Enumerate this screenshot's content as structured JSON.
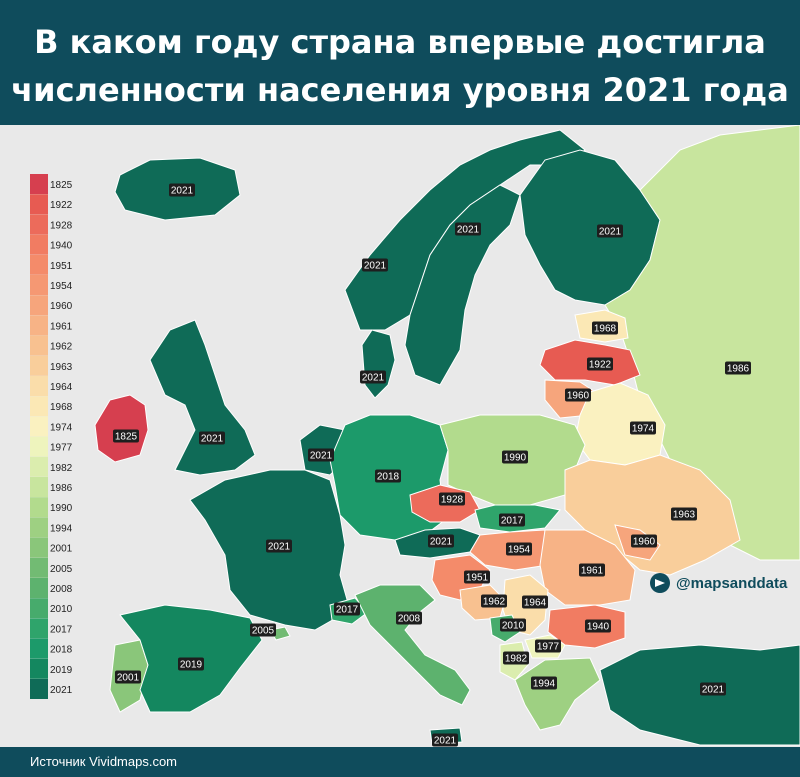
{
  "title": {
    "line1": "В каком году страна впервые достигла",
    "line2": "численности населения уровня 2021 года"
  },
  "source": "Источник Vividmaps.com",
  "telegram_handle": "@mapsanddata",
  "colors": {
    "header_bg": "#0f4c5c",
    "sea": "#e9e9e9"
  },
  "icons": [
    "telegram-icon"
  ],
  "legend": [
    {
      "label": "1825",
      "color": "#d63f4f"
    },
    {
      "label": "1922",
      "color": "#e75b52"
    },
    {
      "label": "1928",
      "color": "#ec6b5b"
    },
    {
      "label": "1940",
      "color": "#f17c62"
    },
    {
      "label": "1951",
      "color": "#f48b6a"
    },
    {
      "label": "1954",
      "color": "#f59873"
    },
    {
      "label": "1960",
      "color": "#f6a57c"
    },
    {
      "label": "1961",
      "color": "#f7b386"
    },
    {
      "label": "1962",
      "color": "#f8c190"
    },
    {
      "label": "1963",
      "color": "#f9ce9b"
    },
    {
      "label": "1964",
      "color": "#faddaa"
    },
    {
      "label": "1968",
      "color": "#fbe8b5"
    },
    {
      "label": "1974",
      "color": "#faf1c0"
    },
    {
      "label": "1977",
      "color": "#eef4bd"
    },
    {
      "label": "1982",
      "color": "#dbedae"
    },
    {
      "label": "1986",
      "color": "#c8e59e"
    },
    {
      "label": "1990",
      "color": "#b2db8d"
    },
    {
      "label": "1994",
      "color": "#9ed082"
    },
    {
      "label": "2001",
      "color": "#8ac67a"
    },
    {
      "label": "2005",
      "color": "#72bb73"
    },
    {
      "label": "2008",
      "color": "#5db26e"
    },
    {
      "label": "2010",
      "color": "#47ab6c"
    },
    {
      "label": "2017",
      "color": "#2fa46b"
    },
    {
      "label": "2018",
      "color": "#1c9a6a"
    },
    {
      "label": "2019",
      "color": "#14875f"
    },
    {
      "label": "2021",
      "color": "#0f6b57"
    }
  ],
  "countries": [
    {
      "name": "iceland",
      "year": "2021"
    },
    {
      "name": "norway",
      "year": "2021"
    },
    {
      "name": "sweden",
      "year": "2021"
    },
    {
      "name": "finland",
      "year": "2021"
    },
    {
      "name": "russia",
      "year": "1986"
    },
    {
      "name": "estonia",
      "year": "1968"
    },
    {
      "name": "latvia",
      "year": "1922"
    },
    {
      "name": "lithuania",
      "year": "1960"
    },
    {
      "name": "belarus",
      "year": "1974"
    },
    {
      "name": "denmark",
      "year": "2021"
    },
    {
      "name": "ireland",
      "year": "1825"
    },
    {
      "name": "uk",
      "year": "2021"
    },
    {
      "name": "netherlands",
      "year": "2021"
    },
    {
      "name": "germany",
      "year": "2018"
    },
    {
      "name": "poland",
      "year": "1990"
    },
    {
      "name": "ukraine",
      "year": "1963"
    },
    {
      "name": "czechia",
      "year": "1928"
    },
    {
      "name": "slovakia",
      "year": "2017"
    },
    {
      "name": "france",
      "year": "2021"
    },
    {
      "name": "austria",
      "year": "2021"
    },
    {
      "name": "hungary",
      "year": "1954"
    },
    {
      "name": "moldova",
      "year": "1960"
    },
    {
      "name": "romania",
      "year": "1961"
    },
    {
      "name": "croatia",
      "year": "1951"
    },
    {
      "name": "bosnia",
      "year": "1962"
    },
    {
      "name": "serbia",
      "year": "1964"
    },
    {
      "name": "montenegro",
      "year": "2010"
    },
    {
      "name": "north-macedonia",
      "year": "1977"
    },
    {
      "name": "bulgaria",
      "year": "1940"
    },
    {
      "name": "albania",
      "year": "1982"
    },
    {
      "name": "greece",
      "year": "1994"
    },
    {
      "name": "switzerland",
      "year": "2017"
    },
    {
      "name": "italy",
      "year": "2008"
    },
    {
      "name": "portugal",
      "year": "2001"
    },
    {
      "name": "spain",
      "year": "2019"
    },
    {
      "name": "spain-balearic",
      "year": "2005"
    },
    {
      "name": "turkey",
      "year": "2021"
    },
    {
      "name": "cyprus",
      "year": "2021"
    }
  ]
}
